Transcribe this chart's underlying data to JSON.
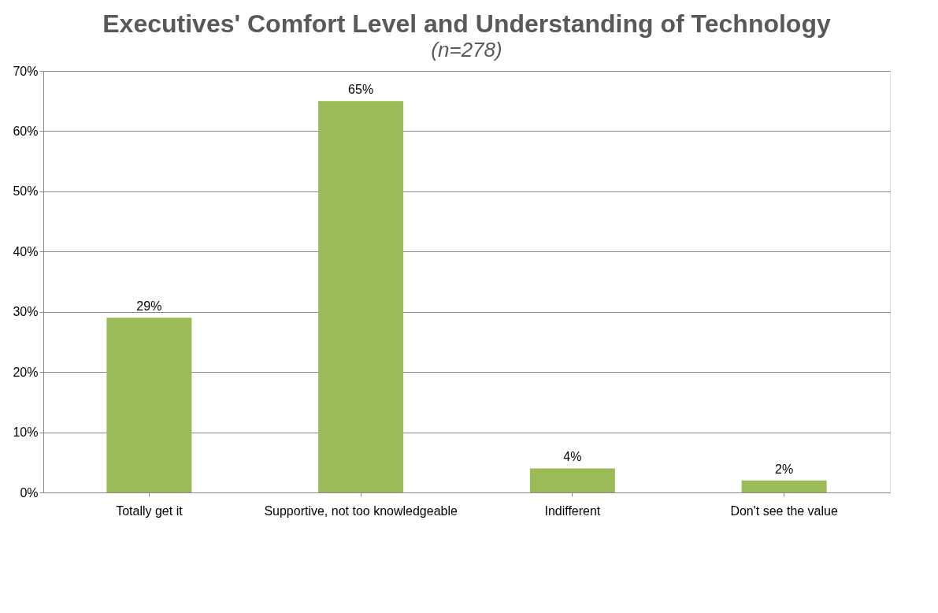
{
  "chart_data": {
    "type": "bar",
    "title": "Executives' Comfort Level and Understanding of Technology",
    "subtitle": "(n=278)",
    "categories": [
      "Totally get it",
      "Supportive, not too knowledgeable",
      "Indifferent",
      "Don't see the value"
    ],
    "values": [
      29,
      65,
      4,
      2
    ],
    "value_labels": [
      "29%",
      "65%",
      "4%",
      "2%"
    ],
    "color": "#9bbb59",
    "ylim": [
      0,
      70
    ],
    "yticks": [
      {
        "value": 0,
        "label": "0%"
      },
      {
        "value": 10,
        "label": "10%"
      },
      {
        "value": 20,
        "label": "20%"
      },
      {
        "value": 30,
        "label": "30%"
      },
      {
        "value": 40,
        "label": "40%"
      },
      {
        "value": 50,
        "label": "50%"
      },
      {
        "value": 60,
        "label": "60%"
      },
      {
        "value": 70,
        "label": "70%"
      }
    ],
    "grid": "y"
  }
}
